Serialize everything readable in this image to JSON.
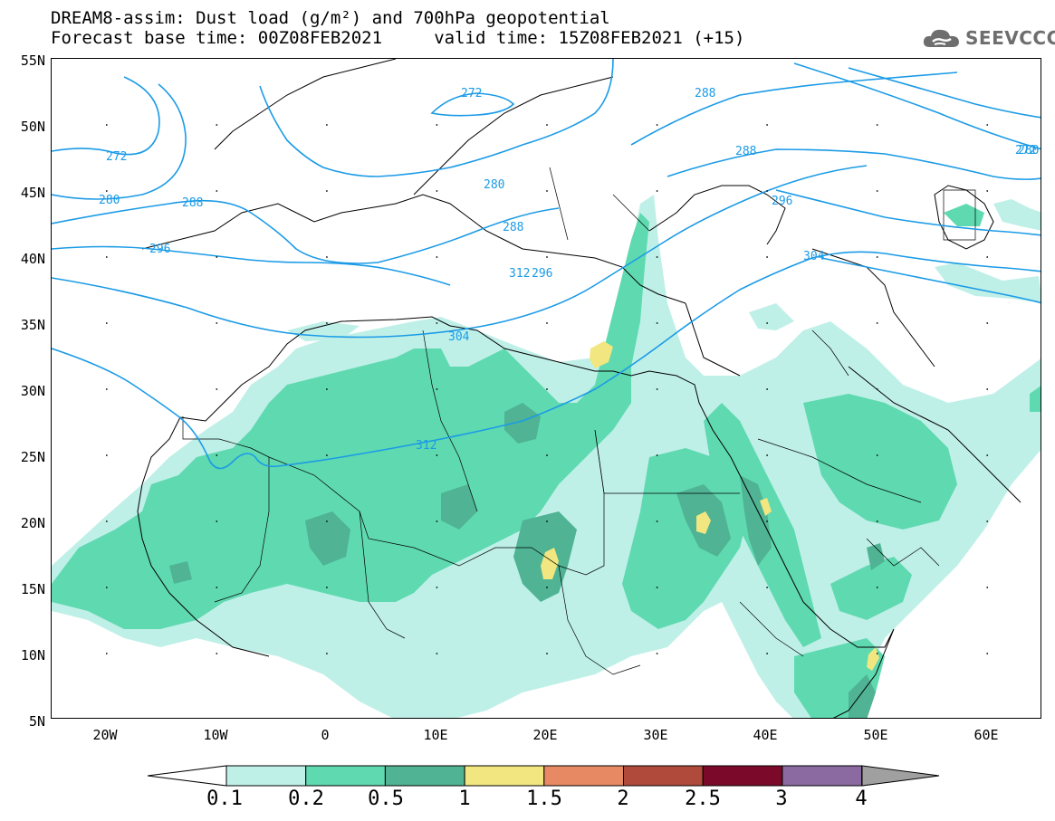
{
  "title": {
    "line1": "DREAM8-assim: Dust load (g/m²) and 700hPa geopotential",
    "line2": "Forecast base time: 00Z08FEB2021     valid time: 15Z08FEB2021 (+15)"
  },
  "logo": {
    "text": "SEEVCCC",
    "icon": "cloud-icon"
  },
  "axes": {
    "lat_labels": [
      "55N",
      "50N",
      "45N",
      "40N",
      "35N",
      "30N",
      "25N",
      "20N",
      "15N",
      "10N",
      "5N"
    ],
    "lon_labels": [
      "20W",
      "10W",
      "0",
      "10E",
      "20E",
      "30E",
      "40E",
      "50E",
      "60E"
    ],
    "lat_range": [
      5,
      55
    ],
    "lon_range": [
      -25,
      65
    ]
  },
  "contours": {
    "color": "#1b9be6",
    "labels": [
      "272",
      "272",
      "280",
      "288",
      "296",
      "288",
      "280",
      "288",
      "296",
      "304",
      "312",
      "272",
      "280",
      "288",
      "296",
      "304",
      "312"
    ]
  },
  "legend": {
    "ticks": [
      "0.1",
      "0.2",
      "0.5",
      "1",
      "1.5",
      "2",
      "2.5",
      "3",
      "4"
    ],
    "colors": [
      "#bff0e8",
      "#5fd9b0",
      "#4fb394",
      "#f2e680",
      "#e78a64",
      "#b04a3a",
      "#7b0a2a",
      "#8a6aa0"
    ],
    "under_color": "#ffffff",
    "over_color": "#a0a0a0"
  }
}
